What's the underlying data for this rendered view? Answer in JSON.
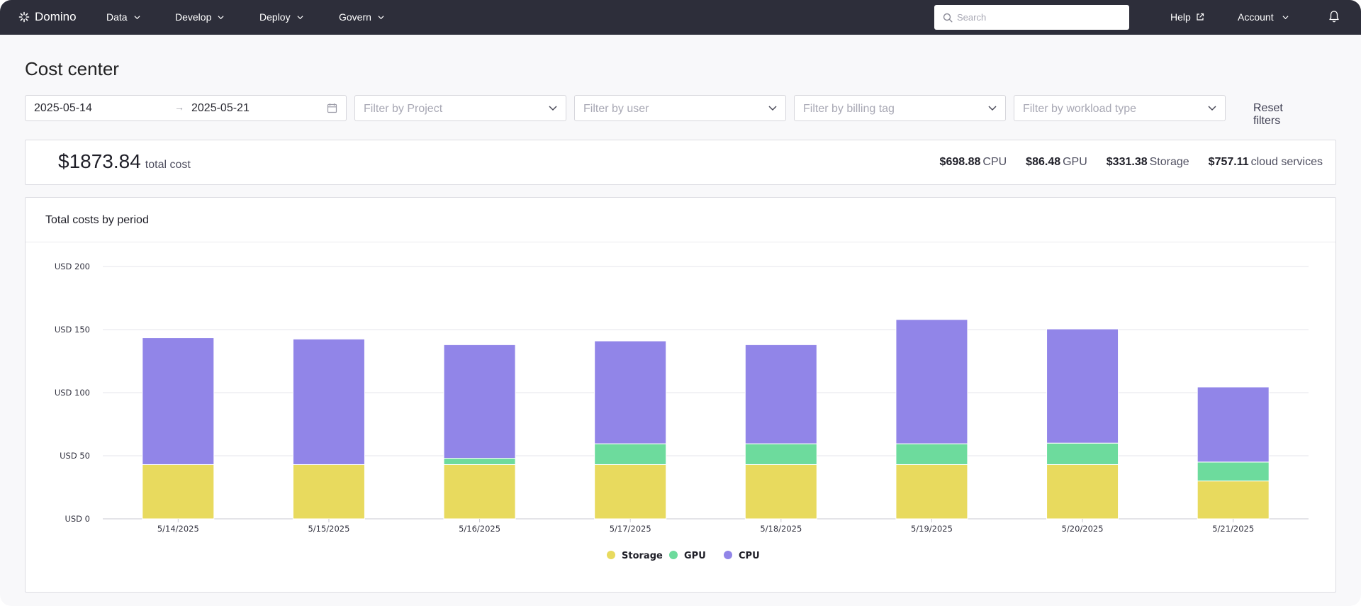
{
  "nav": {
    "logo": "Domino",
    "items": [
      {
        "label": "Data"
      },
      {
        "label": "Develop"
      },
      {
        "label": "Deploy"
      },
      {
        "label": "Govern"
      }
    ],
    "search_placeholder": "Search",
    "help": "Help",
    "account": "Account"
  },
  "page": {
    "title": "Cost center"
  },
  "filters": {
    "date_start": "2025-05-14",
    "date_end": "2025-05-21",
    "project_placeholder": "Filter by Project",
    "user_placeholder": "Filter by user",
    "billing_placeholder": "Filter by billing tag",
    "workload_placeholder": "Filter by workload type",
    "reset": "Reset filters"
  },
  "summary": {
    "total_amount": "$1873.84",
    "total_label": "total cost",
    "breakdown": [
      {
        "value": "$698.88",
        "label": "CPU"
      },
      {
        "value": "$86.48",
        "label": "GPU"
      },
      {
        "value": "$331.38",
        "label": "Storage"
      },
      {
        "value": "$757.11",
        "label": "cloud services"
      }
    ]
  },
  "chart_card": {
    "title": "Total costs by period"
  },
  "chart_data": {
    "type": "bar",
    "stacked": true,
    "title": "Total costs by period",
    "categories": [
      "5/14/2025",
      "5/15/2025",
      "5/16/2025",
      "5/17/2025",
      "5/18/2025",
      "5/19/2025",
      "5/20/2025",
      "5/21/2025"
    ],
    "series": [
      {
        "name": "Storage",
        "color": "#e8da5e",
        "values": [
          43,
          43,
          43,
          43,
          43,
          43,
          43,
          30
        ]
      },
      {
        "name": "GPU",
        "color": "#6ddb9d",
        "values": [
          0,
          0,
          5,
          16.5,
          16.5,
          16.5,
          17,
          15
        ]
      },
      {
        "name": "CPU",
        "color": "#9185e8",
        "values": [
          100.5,
          99.5,
          90,
          81.5,
          78.5,
          98.5,
          90.5,
          59.5
        ]
      }
    ],
    "yticks": [
      "USD 0",
      "USD 50",
      "USD 100",
      "USD 150",
      "USD 200"
    ],
    "ylim": [
      0,
      200
    ],
    "grid": true,
    "legend_position": "bottom-center"
  }
}
